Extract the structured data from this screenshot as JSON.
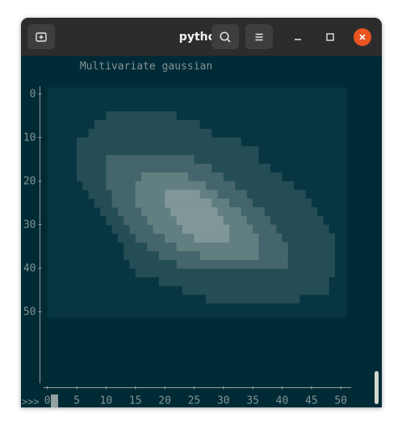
{
  "window": {
    "title": "python",
    "buttons": {
      "new_tab_icon": "new-tab-icon",
      "search_icon": "search-icon",
      "menu_icon": "hamburger-menu-icon",
      "minimize_icon": "minimize-icon",
      "maximize_icon": "maximize-icon",
      "close_icon": "close-icon"
    }
  },
  "terminal": {
    "prompt": ">>>",
    "colors": {
      "background": "#002b36",
      "text": "#839496",
      "axis": "#93a1a1",
      "cursor": "#93a1a1"
    }
  },
  "chart_data": {
    "type": "heatmap",
    "title": "Multivariate gaussian",
    "xlabel": "",
    "ylabel": "",
    "xlim": [
      0,
      51
    ],
    "ylim": [
      0,
      51
    ],
    "x_ticks": [
      0,
      5,
      10,
      15,
      20,
      25,
      30,
      35,
      40,
      45,
      50
    ],
    "y_ticks": [
      0,
      10,
      20,
      30,
      40,
      50
    ],
    "level_colors": [
      "#073642",
      "#254d55",
      "#43656b",
      "#617e81",
      "#7f9799"
    ],
    "levels": [
      {
        "level": 1,
        "rows": [
          {
            "y0": 4,
            "y1": 6,
            "x0": 10,
            "x1": 22
          },
          {
            "y0": 6,
            "y1": 8,
            "x0": 8,
            "x1": 26
          },
          {
            "y0": 8,
            "y1": 10,
            "x0": 7,
            "x1": 28
          },
          {
            "y0": 10,
            "y1": 12,
            "x0": 5,
            "x1": 33
          },
          {
            "y0": 12,
            "y1": 16,
            "x0": 5,
            "x1": 36
          },
          {
            "y0": 16,
            "y1": 18,
            "x0": 5,
            "x1": 38
          },
          {
            "y0": 18,
            "y1": 20,
            "x0": 5,
            "x1": 40
          },
          {
            "y0": 20,
            "y1": 22,
            "x0": 6,
            "x1": 42
          },
          {
            "y0": 22,
            "y1": 24,
            "x0": 7,
            "x1": 44
          },
          {
            "y0": 24,
            "y1": 26,
            "x0": 8,
            "x1": 45
          },
          {
            "y0": 26,
            "y1": 28,
            "x0": 9,
            "x1": 46
          },
          {
            "y0": 28,
            "y1": 30,
            "x0": 10,
            "x1": 47
          },
          {
            "y0": 30,
            "y1": 32,
            "x0": 11,
            "x1": 48
          },
          {
            "y0": 32,
            "y1": 34,
            "x0": 12,
            "x1": 49
          },
          {
            "y0": 34,
            "y1": 38,
            "x0": 13,
            "x1": 49
          },
          {
            "y0": 38,
            "y1": 40,
            "x0": 14,
            "x1": 49
          },
          {
            "y0": 40,
            "y1": 42,
            "x0": 15,
            "x1": 49
          },
          {
            "y0": 42,
            "y1": 44,
            "x0": 19,
            "x1": 48
          },
          {
            "y0": 44,
            "y1": 46,
            "x0": 23,
            "x1": 48
          },
          {
            "y0": 46,
            "y1": 48,
            "x0": 27,
            "x1": 43
          }
        ]
      },
      {
        "level": 2,
        "rows": [
          {
            "y0": 14,
            "y1": 16,
            "x0": 10,
            "x1": 25
          },
          {
            "y0": 16,
            "y1": 18,
            "x0": 10,
            "x1": 28
          },
          {
            "y0": 18,
            "y1": 20,
            "x0": 10,
            "x1": 30
          },
          {
            "y0": 20,
            "y1": 22,
            "x0": 10,
            "x1": 32
          },
          {
            "y0": 22,
            "y1": 24,
            "x0": 11,
            "x1": 34
          },
          {
            "y0": 24,
            "y1": 26,
            "x0": 11,
            "x1": 35
          },
          {
            "y0": 26,
            "y1": 28,
            "x0": 12,
            "x1": 37
          },
          {
            "y0": 28,
            "y1": 30,
            "x0": 13,
            "x1": 38
          },
          {
            "y0": 30,
            "y1": 32,
            "x0": 14,
            "x1": 39
          },
          {
            "y0": 32,
            "y1": 34,
            "x0": 15,
            "x1": 40
          },
          {
            "y0": 34,
            "y1": 36,
            "x0": 17,
            "x1": 41
          },
          {
            "y0": 36,
            "y1": 38,
            "x0": 19,
            "x1": 41
          },
          {
            "y0": 38,
            "y1": 40,
            "x0": 22,
            "x1": 41
          }
        ]
      },
      {
        "level": 3,
        "rows": [
          {
            "y0": 18,
            "y1": 20,
            "x0": 16,
            "x1": 24
          },
          {
            "y0": 20,
            "y1": 22,
            "x0": 15,
            "x1": 27
          },
          {
            "y0": 22,
            "y1": 24,
            "x0": 15,
            "x1": 29
          },
          {
            "y0": 24,
            "y1": 26,
            "x0": 15,
            "x1": 31
          },
          {
            "y0": 26,
            "y1": 28,
            "x0": 16,
            "x1": 33
          },
          {
            "y0": 28,
            "y1": 30,
            "x0": 17,
            "x1": 34
          },
          {
            "y0": 30,
            "y1": 32,
            "x0": 18,
            "x1": 35
          },
          {
            "y0": 32,
            "y1": 34,
            "x0": 20,
            "x1": 36
          },
          {
            "y0": 34,
            "y1": 36,
            "x0": 22,
            "x1": 36
          },
          {
            "y0": 36,
            "y1": 38,
            "x0": 26,
            "x1": 36
          }
        ]
      },
      {
        "level": 4,
        "rows": [
          {
            "y0": 22,
            "y1": 24,
            "x0": 20,
            "x1": 26
          },
          {
            "y0": 24,
            "y1": 26,
            "x0": 20,
            "x1": 28
          },
          {
            "y0": 26,
            "y1": 28,
            "x0": 21,
            "x1": 29
          },
          {
            "y0": 28,
            "y1": 30,
            "x0": 22,
            "x1": 30
          },
          {
            "y0": 30,
            "y1": 32,
            "x0": 23,
            "x1": 31
          },
          {
            "y0": 32,
            "y1": 34,
            "x0": 25,
            "x1": 31
          }
        ]
      }
    ]
  }
}
